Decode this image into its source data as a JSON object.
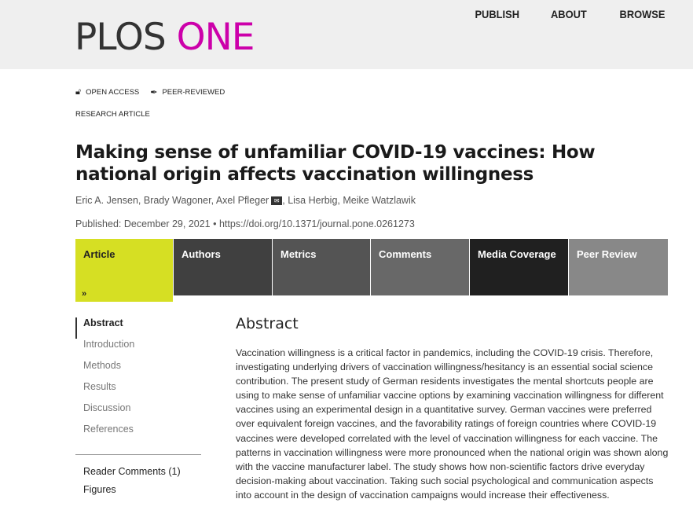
{
  "header": {
    "logo_left": "PLOS",
    "logo_right": "ONE",
    "nav": [
      "PUBLISH",
      "ABOUT",
      "BROWSE"
    ],
    "brand_color": "#cc00aa"
  },
  "badges": {
    "open_access": "OPEN ACCESS",
    "peer_reviewed": "PEER-REVIEWED",
    "article_type": "RESEARCH ARTICLE"
  },
  "article": {
    "title": "Making sense of unfamiliar COVID-19 vaccines: How national origin affects vaccination willingness",
    "authors": [
      "Eric A. Jensen",
      "Brady Wagoner",
      "Axel Pfleger",
      "Lisa Herbig",
      "Meike Watzlawik"
    ],
    "published": "Published: December 29, 2021",
    "doi": "https://doi.org/10.1371/journal.pone.0261273"
  },
  "tabs": [
    {
      "label": "Article",
      "color": "#d6df23"
    },
    {
      "label": "Authors",
      "color": "#404040"
    },
    {
      "label": "Metrics",
      "color": "#545454"
    },
    {
      "label": "Comments",
      "color": "#686868"
    },
    {
      "label": "Media Coverage",
      "color": "#202020"
    },
    {
      "label": "Peer Review",
      "color": "#888888"
    }
  ],
  "toc": {
    "items": [
      "Abstract",
      "Introduction",
      "Methods",
      "Results",
      "Discussion",
      "References"
    ],
    "extras": [
      "Reader Comments (1)",
      "Figures"
    ]
  },
  "abstract": {
    "heading": "Abstract",
    "text": "Vaccination willingness is a critical factor in pandemics, including the COVID-19 crisis. Therefore, investigating underlying drivers of vaccination willingness/hesitancy is an essential social science contribution. The present study of German residents investigates the mental shortcuts people are using to make sense of unfamiliar vaccine options by examining vaccination willingness for different vaccines using an experimental design in a quantitative survey. German vaccines were preferred over equivalent foreign vaccines, and the favorability ratings of foreign countries where COVID-19 vaccines were developed correlated with the level of vaccination willingness for each vaccine. The patterns in vaccination willingness were more pronounced when the national origin was shown along with the vaccine manufacturer label. The study shows how non-scientific factors drive everyday decision-making about vaccination. Taking such social psychological and communication aspects into account in the design of vaccination campaigns would increase their effectiveness."
  }
}
